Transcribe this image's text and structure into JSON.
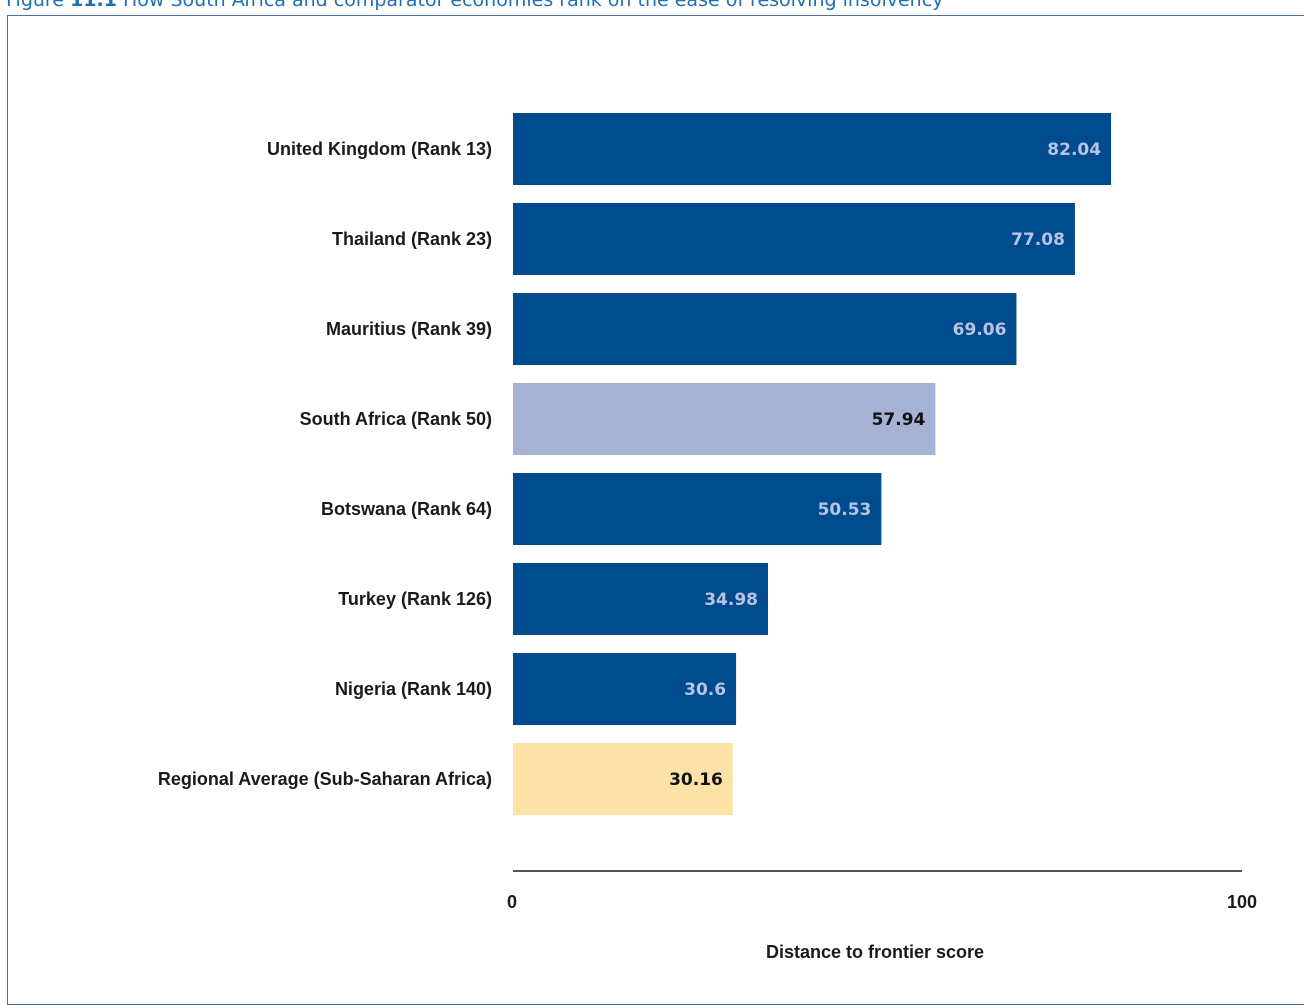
{
  "caption": {
    "number": "11.1",
    "prefix": "Figure",
    "text": "How South Africa and comparator economies rank on the ease of resolving insolvency"
  },
  "chart_data": {
    "type": "bar",
    "orientation": "horizontal",
    "categories": [
      "United Kingdom (Rank 13)",
      "Thailand (Rank 23)",
      "Mauritius (Rank 39)",
      "South Africa (Rank 50)",
      "Botswana (Rank 64)",
      "Turkey (Rank 126)",
      "Nigeria (Rank 140)",
      "Regional Average (Sub-Saharan Africa)"
    ],
    "values": [
      82.04,
      77.08,
      69.06,
      57.94,
      50.53,
      34.98,
      30.6,
      30.16
    ],
    "value_labels": [
      "82.04",
      "77.08",
      "69.06",
      "57.94",
      "50.53",
      "34.98",
      "30.6",
      "30.16"
    ],
    "bar_colors": [
      "#004b8d",
      "#004b8d",
      "#004b8d",
      "#a6b2d4",
      "#004b8d",
      "#004b8d",
      "#004b8d",
      "#fde2a7"
    ],
    "label_colors": [
      "#b6c3e3",
      "#b6c3e3",
      "#b6c3e3",
      "#111111",
      "#b6c3e3",
      "#b6c3e3",
      "#b6c3e3",
      "#111111"
    ],
    "xlim": [
      0,
      100
    ],
    "xticks": [
      "0",
      "100"
    ],
    "xlabel": "Distance to frontier score",
    "ylabel": "",
    "grid": false,
    "legend": "none"
  }
}
